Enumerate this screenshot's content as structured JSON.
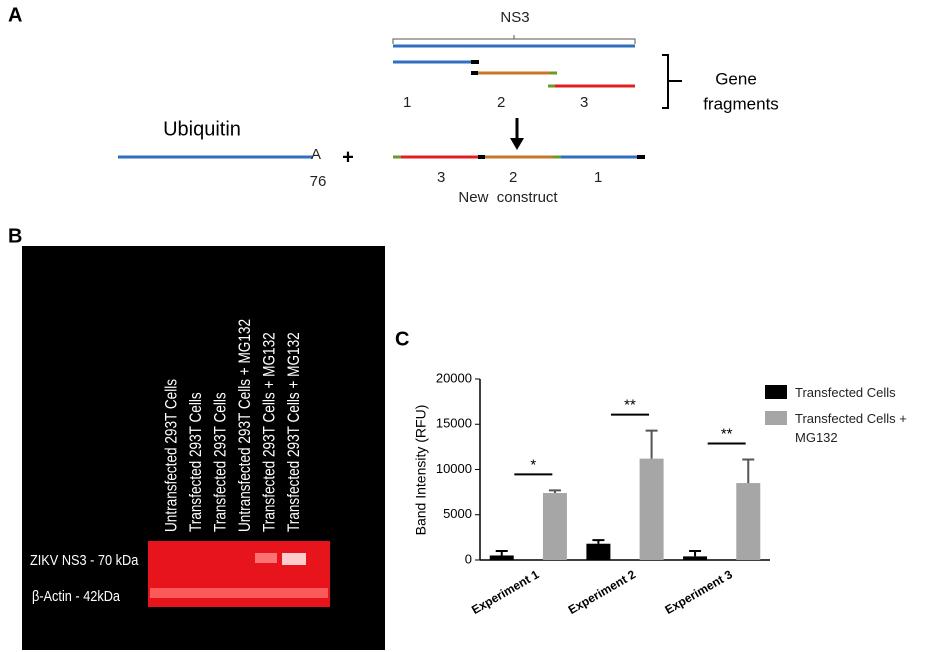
{
  "panel_a": {
    "letter": "A",
    "ns3": "NS3",
    "fragment_labels": [
      "1",
      "2",
      "3"
    ],
    "gene_fragments": [
      "Gene",
      "fragments"
    ],
    "ubiquitin": "Ubiquitin",
    "residue": "A",
    "position": "76",
    "plus": "+",
    "construct_labels": [
      "3",
      "2",
      "1"
    ],
    "new_construct": "New  construct"
  },
  "panel_b": {
    "letter": "B",
    "lanes": [
      "Untransfected 293T Cells",
      "Transfected 293T Cells",
      "Transfected 293T Cells",
      "Untransfected 293T Cells + MG132",
      "Transfected 293T Cells + MG132",
      "Transfected 293T Cells + MG132"
    ],
    "bands": [
      "ZIKV NS3 - 70 kDa",
      "β-Actin - 42kDa"
    ]
  },
  "chart_data": {
    "type": "bar",
    "letter": "C",
    "y_label": "Band Intensity (RFU)",
    "categories": [
      "Experiment 1",
      "Experiment 2",
      "Experiment 3"
    ],
    "series": [
      {
        "name": "Transfected Cells",
        "color": "#000000",
        "values": [
          500,
          1800,
          400
        ],
        "errors": [
          500,
          400,
          600
        ]
      },
      {
        "name": "Transfected Cells + MG132",
        "color": "#a6a6a6",
        "values": [
          7400,
          11200,
          8500
        ],
        "errors": [
          300,
          3100,
          2600
        ]
      }
    ],
    "annotations": [
      "*",
      "**",
      "**"
    ],
    "ylim": [
      0,
      20000
    ],
    "yticks": [
      0,
      5000,
      10000,
      15000,
      20000
    ],
    "grid": false
  }
}
